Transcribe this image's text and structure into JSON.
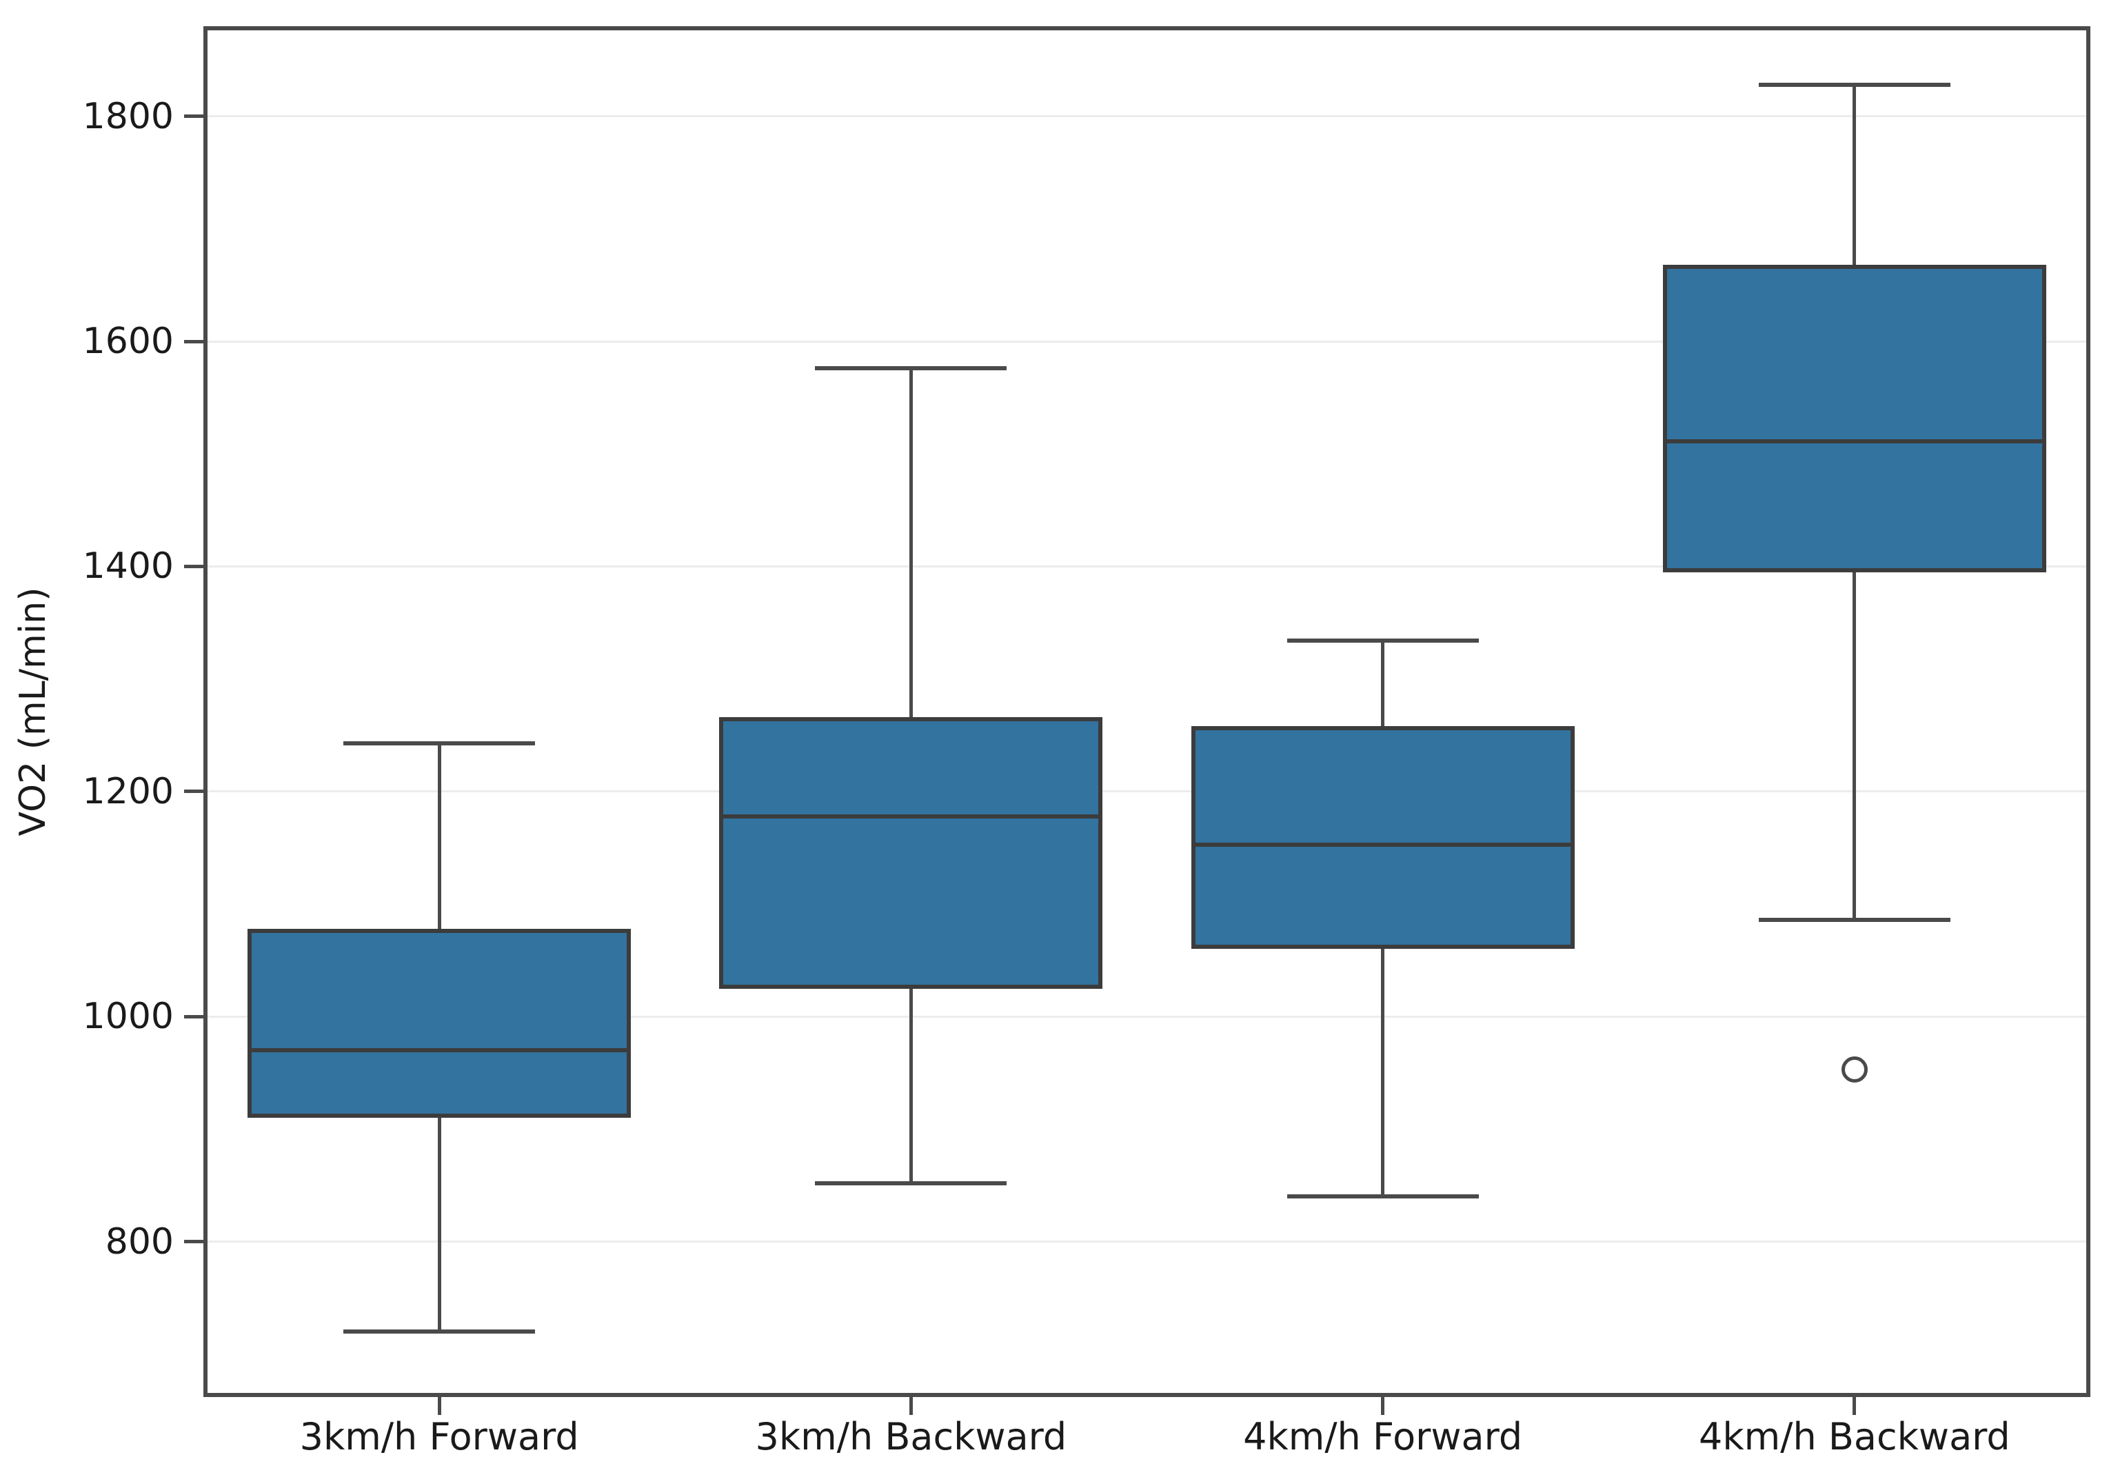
{
  "figure": {
    "background": "#ffffff",
    "text_color": "#1a1a1a",
    "spine_color": "#4a4a4a",
    "grid_color": "#ececec",
    "box_fill_color": "#3273a0",
    "box_edge_color": "#3c3c3c",
    "whisker_color": "#4a4a4a",
    "outlier_edge_color": "#4a4a4a"
  },
  "chart_data": {
    "type": "box",
    "title": "",
    "xlabel": "",
    "ylabel": "VO2 (mL/min)",
    "ylim": [
      662,
      1880
    ],
    "yticks": [
      800,
      1000,
      1200,
      1400,
      1600,
      1800
    ],
    "grid": "horizontal",
    "legend": "none",
    "categories": [
      "3km/h Forward",
      "3km/h Backward",
      "4km/h Forward",
      "4km/h Backward"
    ],
    "series": [
      {
        "category": "3km/h Forward",
        "whisker_low": 720,
        "q1": 910,
        "median": 970,
        "q3": 1078,
        "whisker_high": 1243,
        "outliers": []
      },
      {
        "category": "3km/h Backward",
        "whisker_low": 852,
        "q1": 1025,
        "median": 1178,
        "q3": 1266,
        "whisker_high": 1576,
        "outliers": []
      },
      {
        "category": "4km/h Forward",
        "whisker_low": 840,
        "q1": 1060,
        "median": 1153,
        "q3": 1258,
        "whisker_high": 1334,
        "outliers": []
      },
      {
        "category": "4km/h Backward",
        "whisker_low": 1086,
        "q1": 1395,
        "median": 1511,
        "q3": 1668,
        "whisker_high": 1828,
        "outliers": [
          953
        ]
      }
    ]
  }
}
